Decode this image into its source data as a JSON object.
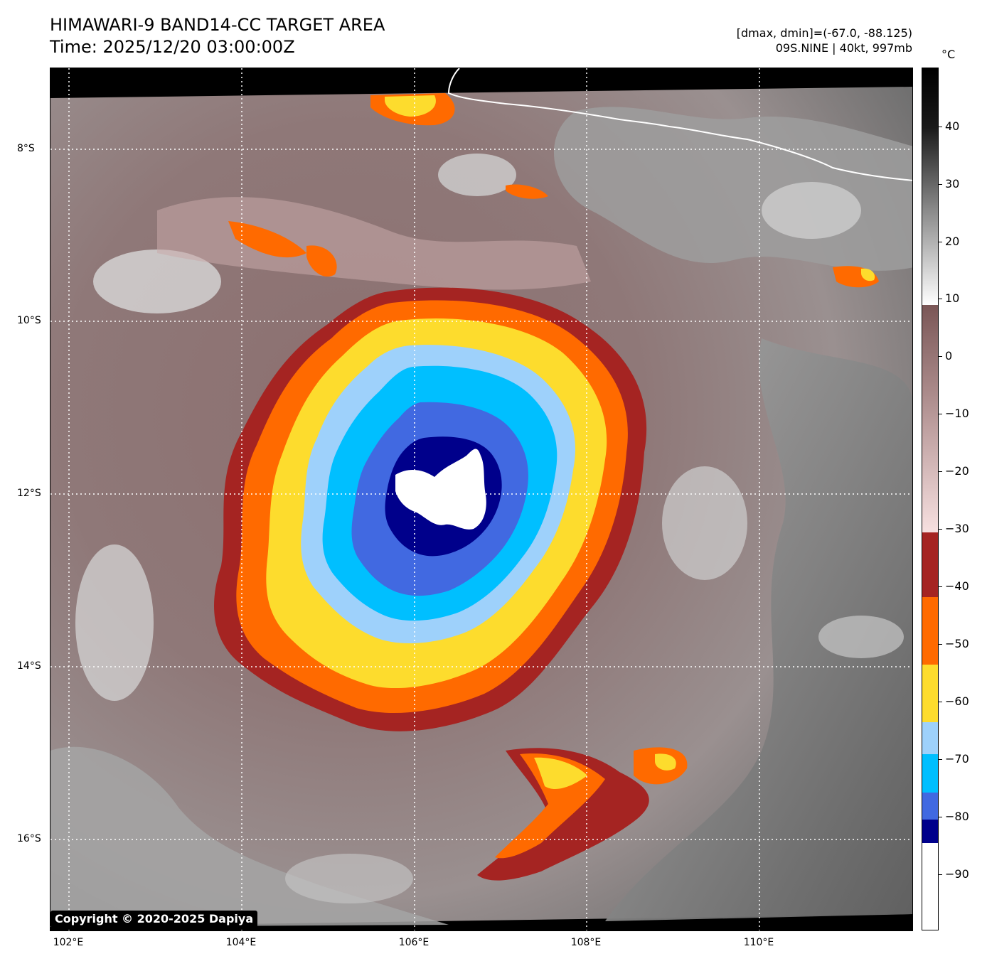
{
  "header": {
    "title": "HIMAWARI-9 BAND14-CC TARGET AREA",
    "time": "Time: 2025/12/20 03:00:00Z",
    "range": "[dmax, dmin]=(-67.0, -88.125)",
    "storm": "09S.NINE | 40kt, 997mb"
  },
  "map": {
    "lat_labels": [
      "8°S",
      "10°S",
      "12°S",
      "14°S",
      "16°S"
    ],
    "lon_labels": [
      "102°E",
      "104°E",
      "106°E",
      "108°E",
      "110°E"
    ],
    "copyright": "Copyright © 2020-2025 Dapiya"
  },
  "colorbar": {
    "unit": "°C",
    "ticks": [
      "40",
      "30",
      "20",
      "10",
      "0",
      "−10",
      "−20",
      "−30",
      "−40",
      "−50",
      "−60",
      "−70",
      "−80",
      "−90"
    ],
    "colors": {
      "white": "#ffffff",
      "navy": "#00008b",
      "royalblue": "#4169e1",
      "deepskyblue": "#00bfff",
      "lightblue": "#9ed1fb",
      "yellow": "#fddc2d",
      "orange": "#ff6a00",
      "brown": "#a52422",
      "black": "#000000"
    }
  }
}
